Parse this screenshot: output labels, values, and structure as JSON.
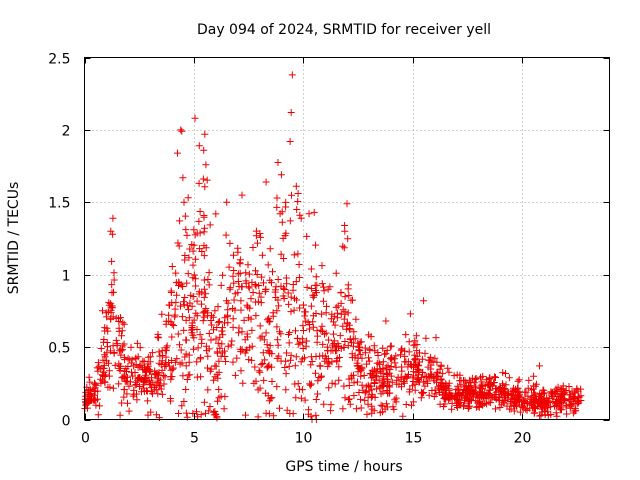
{
  "chart_data": {
    "type": "scatter",
    "title": "Day 094 of 2024, SRMTID for receiver yell",
    "xlabel": "GPS time / hours",
    "ylabel": "SRMTID / TECUs",
    "xlim": [
      0,
      24
    ],
    "ylim": [
      0,
      2.5
    ],
    "x_ticks": [
      0,
      5,
      10,
      15,
      20
    ],
    "x_tick_labels": [
      "0",
      "5",
      "10",
      "15",
      "20"
    ],
    "y_ticks": [
      0,
      0.5,
      1,
      1.5,
      2,
      2.5
    ],
    "y_tick_labels": [
      "0",
      "0.5",
      "1",
      "1.5",
      "2",
      "2.5"
    ],
    "grid": true,
    "marker": "+",
    "series_color": "#ee0000",
    "profile_note": "approximate envelope of the scatter read off the gridlines; each entry is [hour, typical value, typical spread]",
    "profile": [
      [
        0.0,
        0.12,
        0.05
      ],
      [
        0.5,
        0.18,
        0.08
      ],
      [
        0.9,
        0.45,
        0.2
      ],
      [
        1.3,
        0.75,
        0.35
      ],
      [
        1.6,
        0.5,
        0.25
      ],
      [
        2.0,
        0.3,
        0.12
      ],
      [
        2.5,
        0.28,
        0.12
      ],
      [
        3.0,
        0.28,
        0.12
      ],
      [
        3.5,
        0.32,
        0.15
      ],
      [
        4.0,
        0.6,
        0.3
      ],
      [
        4.4,
        1.0,
        0.5
      ],
      [
        4.8,
        0.75,
        0.35
      ],
      [
        5.2,
        0.9,
        0.45
      ],
      [
        5.6,
        0.8,
        0.45
      ],
      [
        6.0,
        0.4,
        0.3
      ],
      [
        6.4,
        0.6,
        0.35
      ],
      [
        7.0,
        0.8,
        0.4
      ],
      [
        7.5,
        0.6,
        0.3
      ],
      [
        8.0,
        0.75,
        0.45
      ],
      [
        8.5,
        0.7,
        0.45
      ],
      [
        9.0,
        0.8,
        0.5
      ],
      [
        9.5,
        0.7,
        0.45
      ],
      [
        10.0,
        0.75,
        0.45
      ],
      [
        10.5,
        0.6,
        0.35
      ],
      [
        11.0,
        0.55,
        0.3
      ],
      [
        11.5,
        0.5,
        0.3
      ],
      [
        12.0,
        0.6,
        0.4
      ],
      [
        12.5,
        0.35,
        0.18
      ],
      [
        13.0,
        0.3,
        0.15
      ],
      [
        13.5,
        0.3,
        0.18
      ],
      [
        14.0,
        0.28,
        0.15
      ],
      [
        14.5,
        0.3,
        0.15
      ],
      [
        15.0,
        0.38,
        0.18
      ],
      [
        15.5,
        0.32,
        0.15
      ],
      [
        16.0,
        0.28,
        0.12
      ],
      [
        16.5,
        0.2,
        0.08
      ],
      [
        17.0,
        0.18,
        0.07
      ],
      [
        17.5,
        0.18,
        0.07
      ],
      [
        18.0,
        0.18,
        0.07
      ],
      [
        18.5,
        0.2,
        0.08
      ],
      [
        19.0,
        0.17,
        0.07
      ],
      [
        19.5,
        0.16,
        0.07
      ],
      [
        20.0,
        0.15,
        0.06
      ],
      [
        20.5,
        0.15,
        0.06
      ],
      [
        21.0,
        0.12,
        0.06
      ],
      [
        21.5,
        0.13,
        0.05
      ],
      [
        22.0,
        0.15,
        0.06
      ],
      [
        22.7,
        0.15,
        0.05
      ]
    ],
    "notable_points": [
      [
        0.05,
        0.16
      ],
      [
        1.3,
        1.39
      ],
      [
        1.2,
        1.3
      ],
      [
        4.25,
        1.84
      ],
      [
        4.4,
        2.0
      ],
      [
        4.45,
        1.99
      ],
      [
        4.5,
        1.67
      ],
      [
        4.55,
        1.5
      ],
      [
        5.05,
        2.08
      ],
      [
        5.25,
        1.89
      ],
      [
        5.5,
        1.97
      ],
      [
        5.45,
        1.86
      ],
      [
        5.55,
        1.76
      ],
      [
        6.0,
        1.42
      ],
      [
        6.5,
        1.5
      ],
      [
        7.2,
        1.55
      ],
      [
        8.3,
        1.64
      ],
      [
        8.8,
        1.53
      ],
      [
        9.0,
        1.69
      ],
      [
        9.5,
        2.38
      ],
      [
        9.45,
        2.12
      ],
      [
        9.4,
        1.92
      ],
      [
        9.7,
        1.45
      ],
      [
        10.5,
        1.43
      ],
      [
        12.0,
        1.49
      ],
      [
        11.9,
        1.3
      ],
      [
        15.5,
        0.82
      ],
      [
        5.9,
        0.05
      ],
      [
        6.05,
        0.02
      ],
      [
        10.4,
        0.0
      ],
      [
        10.6,
        0.0
      ],
      [
        20.8,
        0.37
      ]
    ],
    "points_generated_from_profile": 1700,
    "random_seed": 94
  }
}
